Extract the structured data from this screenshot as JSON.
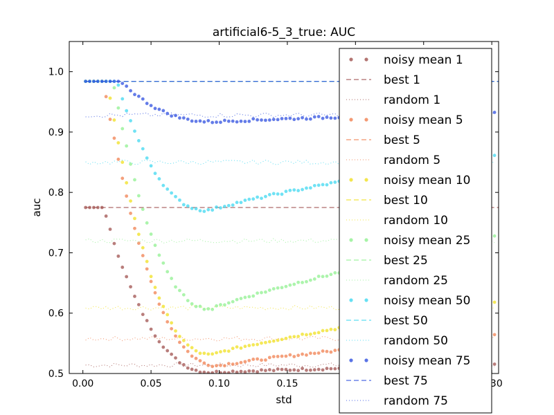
{
  "chart_data": {
    "type": "scatter",
    "title": "artificial6-5_3_true: AUC",
    "xlabel": "std",
    "ylabel": "auc",
    "xlim": [
      -0.01,
      0.305
    ],
    "ylim": [
      0.5,
      1.05
    ],
    "xticks": [
      "0.00",
      "0.05",
      "0.10",
      "0.15",
      "0.20",
      "0.25",
      "0.30"
    ],
    "yticks": [
      "0.5",
      "0.6",
      "0.7",
      "0.8",
      "0.9",
      "1.0"
    ],
    "legend_location": "right",
    "grid": false,
    "groups": [
      {
        "k": 1,
        "color": "#a0524f",
        "best": 0.775,
        "random_level": 0.514,
        "noisy_mean": {
          "start": 0.775,
          "plateau_end": 0.015,
          "dip_x": 0.095,
          "dip_y": 0.502,
          "end_y": 0.515
        },
        "labels": [
          "noisy mean 1",
          "best 1",
          "random 1"
        ]
      },
      {
        "k": 5,
        "color": "#f08050",
        "best": 0.984,
        "random_level": 0.558,
        "noisy_mean": {
          "start": 0.984,
          "plateau_end": 0.015,
          "dip_x": 0.1,
          "dip_y": 0.513,
          "end_y": 0.565
        },
        "labels": [
          "noisy mean 5",
          "best 5",
          "random 5"
        ]
      },
      {
        "k": 10,
        "color": "#f0e020",
        "best": 0.984,
        "random_level": 0.609,
        "noisy_mean": {
          "start": 0.984,
          "plateau_end": 0.018,
          "dip_x": 0.095,
          "dip_y": 0.531,
          "end_y": 0.62
        },
        "labels": [
          "noisy mean 10",
          "best 10",
          "random 10"
        ]
      },
      {
        "k": 25,
        "color": "#90f090",
        "best": 0.984,
        "random_level": 0.72,
        "noisy_mean": {
          "start": 0.984,
          "plateau_end": 0.022,
          "dip_x": 0.095,
          "dip_y": 0.607,
          "end_y": 0.728
        },
        "labels": [
          "noisy mean 25",
          "best 25",
          "random 25"
        ]
      },
      {
        "k": 50,
        "color": "#40d8f0",
        "best": 0.984,
        "random_level": 0.85,
        "noisy_mean": {
          "start": 0.984,
          "plateau_end": 0.025,
          "dip_x": 0.093,
          "dip_y": 0.77,
          "end_y": 0.864
        },
        "labels": [
          "noisy mean 50",
          "best 50",
          "random 50"
        ]
      },
      {
        "k": 75,
        "color": "#3050e0",
        "best": 0.984,
        "random_level": 0.928,
        "noisy_mean": {
          "start": 0.984,
          "plateau_end": 0.028,
          "dip_x": 0.097,
          "dip_y": 0.917,
          "end_y": 0.933
        },
        "labels": [
          "noisy mean 75",
          "best 75",
          "random 75"
        ]
      }
    ]
  }
}
